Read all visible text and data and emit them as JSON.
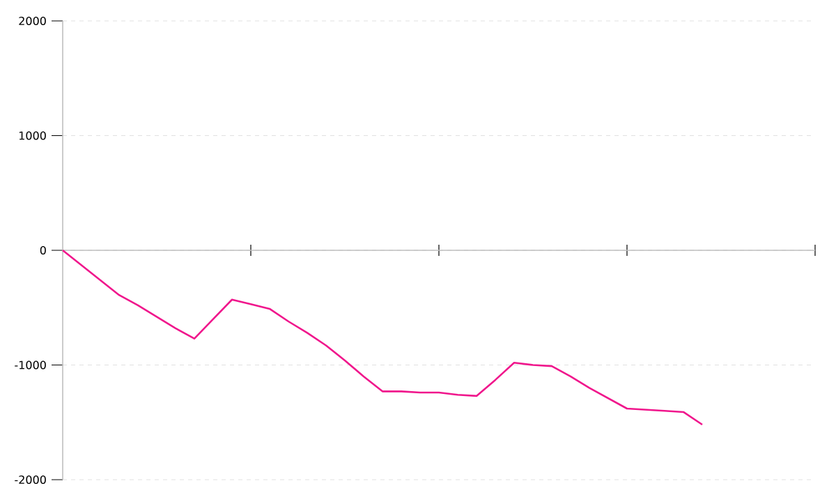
{
  "chart_data": {
    "type": "line",
    "categories": [
      null,
      null,
      null,
      null,
      null,
      null,
      null,
      null,
      null,
      null,
      null,
      null,
      null,
      null,
      null,
      null,
      null,
      null,
      null,
      null,
      null,
      null,
      null,
      null,
      null,
      null,
      null,
      null,
      null,
      null,
      null,
      null,
      null,
      null,
      null,
      null,
      null,
      null,
      null,
      null,
      null
    ],
    "values": [
      0,
      -130,
      -260,
      -390,
      -480,
      -580,
      -680,
      -770,
      -600,
      -430,
      -470,
      -510,
      -620,
      -720,
      -830,
      -960,
      -1100,
      -1230,
      -1230,
      -1240,
      -1240,
      -1260,
      -1270,
      -1130,
      -980,
      -1000,
      -1010,
      -1100,
      -1200,
      -1290,
      -1380,
      -1390,
      -1400,
      -1410,
      -1520,
      null,
      null,
      null,
      null,
      null,
      null
    ],
    "color": "#f0168c",
    "ylim": [
      -2000,
      2000
    ],
    "yticks": [
      -2000,
      -1000,
      0,
      1000,
      2000
    ],
    "tick_labels": "y",
    "grid": "y",
    "marker": "none",
    "line_style": "solid"
  }
}
